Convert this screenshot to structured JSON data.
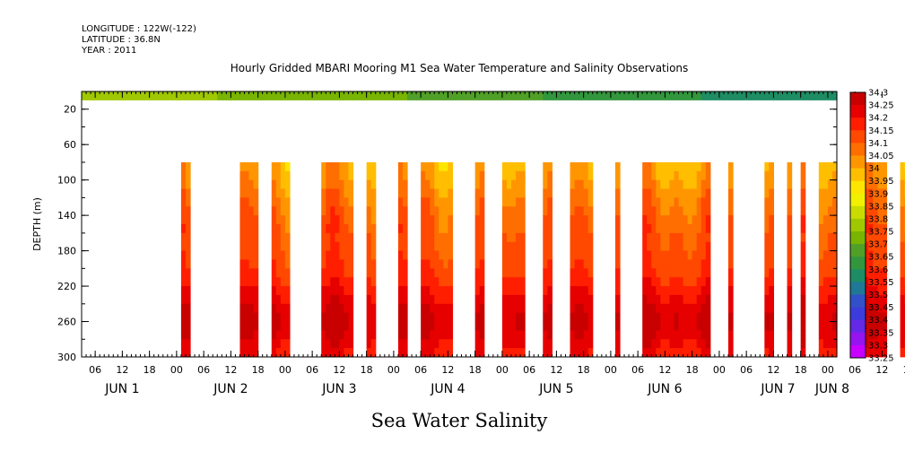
{
  "header": {
    "longitude": "LONGITUDE : 122W(-122)",
    "latitude": "LATITUDE : 36.8N",
    "year": "YEAR : 2011"
  },
  "chart_data": {
    "type": "heatmap",
    "title": "Hourly Gridded MBARI Mooring M1 Sea Water Temperature and Salinity Observations",
    "xlabel": "Sea Water Salinity",
    "ylabel": "DEPTH (m)",
    "y_ticks": [
      20,
      60,
      100,
      140,
      180,
      220,
      260,
      300
    ],
    "ylim": [
      300,
      0
    ],
    "x_hour_ticks": [
      "06",
      "12",
      "18",
      "00",
      "06",
      "12",
      "18",
      "00",
      "06",
      "12",
      "18",
      "00",
      "06",
      "12",
      "18",
      "00",
      "06",
      "12",
      "18",
      "00",
      "06",
      "12",
      "18",
      "00",
      "06",
      "12",
      "18",
      "00",
      "06",
      "12",
      "18",
      "00"
    ],
    "x_day_labels": [
      "JUN 1",
      "JUN 2",
      "JUN 3",
      "JUN 4",
      "JUN 5",
      "JUN 6",
      "JUN 7",
      "JUN 8"
    ],
    "x_range": [
      "JUN 1 03:00",
      "JUN 8 02:00"
    ],
    "colorbar_levels": [
      "34.3",
      "34.25",
      "34.2",
      "34.15",
      "34.1",
      "34.05",
      "34",
      "33.95",
      "33.9",
      "33.85",
      "33.8",
      "33.75",
      "33.7",
      "33.65",
      "33.6",
      "33.55",
      "33.5",
      "33.45",
      "33.4",
      "33.35",
      "33.3",
      "33.25"
    ],
    "colorbar_colors": [
      "#a00000",
      "#c80000",
      "#e60000",
      "#ff1e00",
      "#ff4800",
      "#ff6e00",
      "#ff9600",
      "#ffbe00",
      "#ffe600",
      "#f0f000",
      "#c8dc00",
      "#a0c800",
      "#78b400",
      "#50a028",
      "#32963c",
      "#1e8c64",
      "#1e7896",
      "#3250c8",
      "#3c3cdc",
      "#6428e6",
      "#9614f0",
      "#c800ff"
    ],
    "data_depth_range": [
      80,
      300
    ],
    "surface_band_depth": [
      0,
      10
    ],
    "data_segments_hours": [
      [
        22,
        24
      ],
      [
        35,
        39
      ],
      [
        42,
        46
      ],
      [
        53,
        60
      ],
      [
        63,
        65
      ],
      [
        70,
        72
      ],
      [
        75,
        82
      ],
      [
        87,
        89
      ],
      [
        93,
        98
      ],
      [
        102,
        104
      ],
      [
        108,
        113
      ],
      [
        118,
        119
      ],
      [
        124,
        139
      ],
      [
        143,
        144
      ],
      [
        151,
        153
      ],
      [
        156,
        157
      ],
      [
        159,
        160
      ],
      [
        163,
        167
      ],
      [
        171,
        178
      ],
      [
        181,
        183
      ],
      [
        186,
        191
      ],
      [
        195,
        201
      ],
      [
        204,
        205
      ],
      [
        208,
        209
      ],
      [
        211,
        212
      ],
      [
        215,
        219
      ],
      [
        222,
        225
      ],
      [
        228,
        244
      ],
      [
        248,
        249
      ],
      [
        252,
        254
      ]
    ],
    "surface_band_salinity": [
      [
        0,
        33.78
      ],
      [
        60,
        33.72
      ],
      [
        120,
        33.62
      ],
      [
        170,
        33.56
      ],
      [
        185,
        33.38
      ],
      [
        260,
        33.46
      ]
    ],
    "depth_salinity_profile": [
      [
        80,
        34.0
      ],
      [
        100,
        34.02
      ],
      [
        120,
        34.06
      ],
      [
        140,
        34.09
      ],
      [
        160,
        34.11
      ],
      [
        180,
        34.12
      ],
      [
        200,
        34.14
      ],
      [
        220,
        34.18
      ],
      [
        240,
        34.23
      ],
      [
        260,
        34.27
      ],
      [
        280,
        34.23
      ],
      [
        300,
        34.19
      ]
    ]
  }
}
